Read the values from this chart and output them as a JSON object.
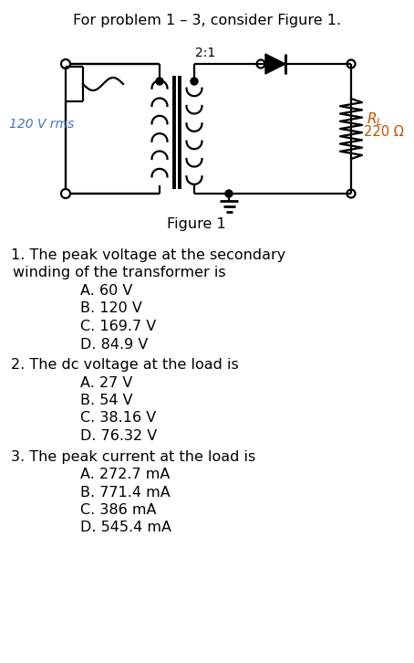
{
  "title": "For problem 1 – 3, consider Figure 1.",
  "figure_label": "Figure 1",
  "voltage_label": "120 V rms",
  "voltage_color": "#4472C4",
  "ratio_label": "2:1",
  "rl_color": "#C05000",
  "ohm_label": "220 Ω",
  "ohm_color": "#C05000",
  "questions": [
    {
      "num": "1.",
      "text": " The peak voltage at the secondary",
      "text2": "winding of the transformer is",
      "choices": [
        "A. 60 V",
        "B. 120 V",
        "C. 169.7 V",
        "D. 84.9 V"
      ]
    },
    {
      "num": "2.",
      "text": " The dc voltage at the load is",
      "text2": "",
      "choices": [
        "A. 27 V",
        "B. 54 V",
        "C. 38.16 V",
        "D. 76.32 V"
      ]
    },
    {
      "num": "3.",
      "text": " The peak current at the load is",
      "text2": "",
      "choices": [
        "A. 272.7 mA",
        "B. 771.4 mA",
        "C. 386 mA",
        "D. 545.4 mA"
      ]
    }
  ],
  "bg_color": "#ffffff",
  "text_color": "#000000",
  "line_color": "#000000"
}
